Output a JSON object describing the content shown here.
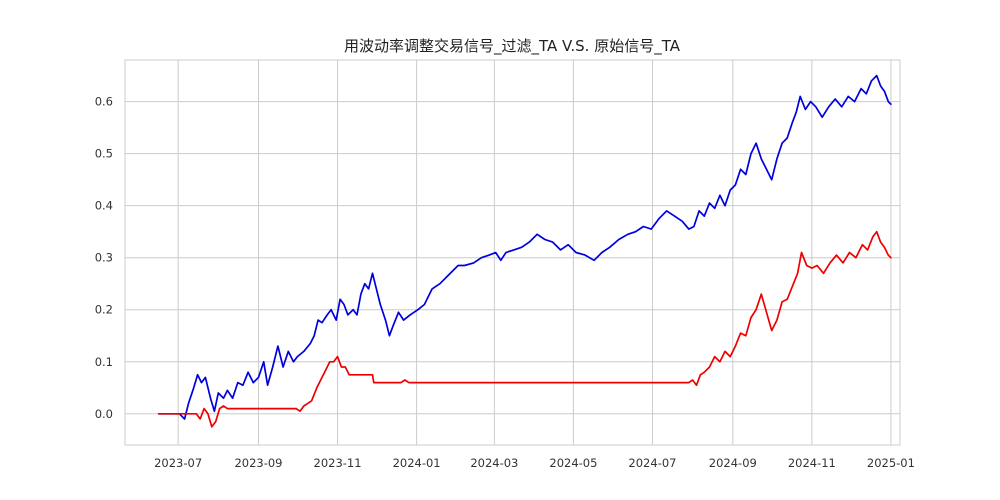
{
  "chart_data": {
    "type": "line",
    "title": "用波动率调整交易信号_过滤_TA V.S. 原始信号_TA",
    "xlabel": "",
    "ylabel": "",
    "x_ticks": [
      "2023-07",
      "2023-09",
      "2023-11",
      "2024-01",
      "2024-03",
      "2024-05",
      "2024-07",
      "2024-09",
      "2024-11",
      "2025-01"
    ],
    "y_ticks": [
      "0.0",
      "0.1",
      "0.2",
      "0.3",
      "0.4",
      "0.5",
      "0.6"
    ],
    "xlim": [
      "2023-05-21",
      "2025-01-08"
    ],
    "ylim": [
      -0.06,
      0.68
    ],
    "grid": true,
    "legend": "none",
    "series": [
      {
        "color": "#0000dd",
        "points": [
          [
            "2023-06-16",
            0.0
          ],
          [
            "2023-06-25",
            0.0
          ],
          [
            "2023-07-02",
            0.0
          ],
          [
            "2023-07-06",
            -0.01
          ],
          [
            "2023-07-09",
            0.02
          ],
          [
            "2023-07-13",
            0.05
          ],
          [
            "2023-07-16",
            0.075
          ],
          [
            "2023-07-19",
            0.06
          ],
          [
            "2023-07-22",
            0.07
          ],
          [
            "2023-07-26",
            0.03
          ],
          [
            "2023-07-29",
            0.005
          ],
          [
            "2023-08-01",
            0.04
          ],
          [
            "2023-08-05",
            0.03
          ],
          [
            "2023-08-08",
            0.045
          ],
          [
            "2023-08-12",
            0.03
          ],
          [
            "2023-08-16",
            0.06
          ],
          [
            "2023-08-20",
            0.055
          ],
          [
            "2023-08-24",
            0.08
          ],
          [
            "2023-08-28",
            0.06
          ],
          [
            "2023-09-01",
            0.07
          ],
          [
            "2023-09-05",
            0.1
          ],
          [
            "2023-09-08",
            0.055
          ],
          [
            "2023-09-12",
            0.09
          ],
          [
            "2023-09-16",
            0.13
          ],
          [
            "2023-09-20",
            0.09
          ],
          [
            "2023-09-24",
            0.12
          ],
          [
            "2023-09-28",
            0.1
          ],
          [
            "2023-10-01",
            0.11
          ],
          [
            "2023-10-06",
            0.12
          ],
          [
            "2023-10-11",
            0.135
          ],
          [
            "2023-10-14",
            0.15
          ],
          [
            "2023-10-17",
            0.18
          ],
          [
            "2023-10-20",
            0.175
          ],
          [
            "2023-10-24",
            0.19
          ],
          [
            "2023-10-27",
            0.2
          ],
          [
            "2023-10-31",
            0.18
          ],
          [
            "2023-11-03",
            0.22
          ],
          [
            "2023-11-06",
            0.21
          ],
          [
            "2023-11-09",
            0.19
          ],
          [
            "2023-11-13",
            0.2
          ],
          [
            "2023-11-16",
            0.19
          ],
          [
            "2023-11-19",
            0.23
          ],
          [
            "2023-11-22",
            0.25
          ],
          [
            "2023-11-25",
            0.24
          ],
          [
            "2023-11-28",
            0.27
          ],
          [
            "2023-12-01",
            0.24
          ],
          [
            "2023-12-04",
            0.21
          ],
          [
            "2023-12-08",
            0.18
          ],
          [
            "2023-12-11",
            0.15
          ],
          [
            "2023-12-14",
            0.17
          ],
          [
            "2023-12-18",
            0.195
          ],
          [
            "2023-12-22",
            0.18
          ],
          [
            "2023-12-27",
            0.19
          ],
          [
            "2024-01-02",
            0.2
          ],
          [
            "2024-01-07",
            0.21
          ],
          [
            "2024-01-13",
            0.24
          ],
          [
            "2024-01-19",
            0.25
          ],
          [
            "2024-01-25",
            0.265
          ],
          [
            "2024-02-02",
            0.285
          ],
          [
            "2024-02-07",
            0.285
          ],
          [
            "2024-02-14",
            0.29
          ],
          [
            "2024-02-20",
            0.3
          ],
          [
            "2024-02-26",
            0.305
          ],
          [
            "2024-03-02",
            0.31
          ],
          [
            "2024-03-06",
            0.295
          ],
          [
            "2024-03-10",
            0.31
          ],
          [
            "2024-03-16",
            0.315
          ],
          [
            "2024-03-22",
            0.32
          ],
          [
            "2024-03-28",
            0.33
          ],
          [
            "2024-04-03",
            0.345
          ],
          [
            "2024-04-09",
            0.335
          ],
          [
            "2024-04-15",
            0.33
          ],
          [
            "2024-04-21",
            0.315
          ],
          [
            "2024-04-27",
            0.325
          ],
          [
            "2024-05-03",
            0.31
          ],
          [
            "2024-05-10",
            0.305
          ],
          [
            "2024-05-17",
            0.295
          ],
          [
            "2024-05-23",
            0.31
          ],
          [
            "2024-05-29",
            0.32
          ],
          [
            "2024-06-05",
            0.335
          ],
          [
            "2024-06-12",
            0.345
          ],
          [
            "2024-06-18",
            0.35
          ],
          [
            "2024-06-24",
            0.36
          ],
          [
            "2024-06-30",
            0.355
          ],
          [
            "2024-07-06",
            0.375
          ],
          [
            "2024-07-12",
            0.39
          ],
          [
            "2024-07-18",
            0.38
          ],
          [
            "2024-07-24",
            0.37
          ],
          [
            "2024-07-29",
            0.355
          ],
          [
            "2024-08-02",
            0.36
          ],
          [
            "2024-08-06",
            0.39
          ],
          [
            "2024-08-10",
            0.38
          ],
          [
            "2024-08-14",
            0.405
          ],
          [
            "2024-08-18",
            0.395
          ],
          [
            "2024-08-22",
            0.42
          ],
          [
            "2024-08-26",
            0.4
          ],
          [
            "2024-08-30",
            0.43
          ],
          [
            "2024-09-03",
            0.44
          ],
          [
            "2024-09-07",
            0.47
          ],
          [
            "2024-09-11",
            0.46
          ],
          [
            "2024-09-15",
            0.5
          ],
          [
            "2024-09-19",
            0.52
          ],
          [
            "2024-09-23",
            0.49
          ],
          [
            "2024-09-27",
            0.47
          ],
          [
            "2024-10-01",
            0.45
          ],
          [
            "2024-10-05",
            0.49
          ],
          [
            "2024-10-09",
            0.52
          ],
          [
            "2024-10-13",
            0.53
          ],
          [
            "2024-10-17",
            0.56
          ],
          [
            "2024-10-20",
            0.58
          ],
          [
            "2024-10-23",
            0.61
          ],
          [
            "2024-10-27",
            0.585
          ],
          [
            "2024-10-31",
            0.6
          ],
          [
            "2024-11-04",
            0.59
          ],
          [
            "2024-11-09",
            0.57
          ],
          [
            "2024-11-14",
            0.59
          ],
          [
            "2024-11-19",
            0.605
          ],
          [
            "2024-11-24",
            0.59
          ],
          [
            "2024-11-29",
            0.61
          ],
          [
            "2024-12-04",
            0.6
          ],
          [
            "2024-12-09",
            0.625
          ],
          [
            "2024-12-13",
            0.615
          ],
          [
            "2024-12-17",
            0.64
          ],
          [
            "2024-12-21",
            0.65
          ],
          [
            "2024-12-24",
            0.63
          ],
          [
            "2024-12-27",
            0.62
          ],
          [
            "2024-12-30",
            0.6
          ],
          [
            "2025-01-01",
            0.595
          ]
        ]
      },
      {
        "color": "#ee0000",
        "points": [
          [
            "2023-06-16",
            0.0
          ],
          [
            "2023-07-15",
            0.0
          ],
          [
            "2023-07-18",
            -0.01
          ],
          [
            "2023-07-21",
            0.01
          ],
          [
            "2023-07-24",
            0.0
          ],
          [
            "2023-07-27",
            -0.025
          ],
          [
            "2023-07-30",
            -0.015
          ],
          [
            "2023-08-02",
            0.01
          ],
          [
            "2023-08-05",
            0.015
          ],
          [
            "2023-08-08",
            0.01
          ],
          [
            "2023-09-30",
            0.01
          ],
          [
            "2023-10-03",
            0.005
          ],
          [
            "2023-10-06",
            0.015
          ],
          [
            "2023-10-09",
            0.02
          ],
          [
            "2023-10-12",
            0.025
          ],
          [
            "2023-10-16",
            0.05
          ],
          [
            "2023-10-19",
            0.065
          ],
          [
            "2023-10-22",
            0.08
          ],
          [
            "2023-10-26",
            0.1
          ],
          [
            "2023-10-29",
            0.1
          ],
          [
            "2023-11-01",
            0.11
          ],
          [
            "2023-11-04",
            0.09
          ],
          [
            "2023-11-07",
            0.09
          ],
          [
            "2023-11-10",
            0.075
          ],
          [
            "2023-11-28",
            0.075
          ],
          [
            "2023-11-29",
            0.06
          ],
          [
            "2023-12-20",
            0.06
          ],
          [
            "2023-12-23",
            0.065
          ],
          [
            "2023-12-26",
            0.06
          ],
          [
            "2024-07-29",
            0.06
          ],
          [
            "2024-08-01",
            0.065
          ],
          [
            "2024-08-04",
            0.055
          ],
          [
            "2024-08-07",
            0.075
          ],
          [
            "2024-08-10",
            0.08
          ],
          [
            "2024-08-14",
            0.09
          ],
          [
            "2024-08-18",
            0.11
          ],
          [
            "2024-08-22",
            0.1
          ],
          [
            "2024-08-26",
            0.12
          ],
          [
            "2024-08-30",
            0.11
          ],
          [
            "2024-09-03",
            0.13
          ],
          [
            "2024-09-07",
            0.155
          ],
          [
            "2024-09-11",
            0.15
          ],
          [
            "2024-09-15",
            0.185
          ],
          [
            "2024-09-19",
            0.2
          ],
          [
            "2024-09-23",
            0.23
          ],
          [
            "2024-09-27",
            0.195
          ],
          [
            "2024-10-01",
            0.16
          ],
          [
            "2024-10-05",
            0.18
          ],
          [
            "2024-10-09",
            0.215
          ],
          [
            "2024-10-13",
            0.22
          ],
          [
            "2024-10-17",
            0.245
          ],
          [
            "2024-10-21",
            0.27
          ],
          [
            "2024-10-24",
            0.31
          ],
          [
            "2024-10-28",
            0.285
          ],
          [
            "2024-11-01",
            0.28
          ],
          [
            "2024-11-05",
            0.285
          ],
          [
            "2024-11-10",
            0.27
          ],
          [
            "2024-11-15",
            0.29
          ],
          [
            "2024-11-20",
            0.305
          ],
          [
            "2024-11-25",
            0.29
          ],
          [
            "2024-11-30",
            0.31
          ],
          [
            "2024-12-05",
            0.3
          ],
          [
            "2024-12-10",
            0.325
          ],
          [
            "2024-12-14",
            0.315
          ],
          [
            "2024-12-18",
            0.34
          ],
          [
            "2024-12-21",
            0.35
          ],
          [
            "2024-12-24",
            0.33
          ],
          [
            "2024-12-27",
            0.32
          ],
          [
            "2024-12-30",
            0.305
          ],
          [
            "2025-01-01",
            0.3
          ]
        ]
      }
    ]
  }
}
